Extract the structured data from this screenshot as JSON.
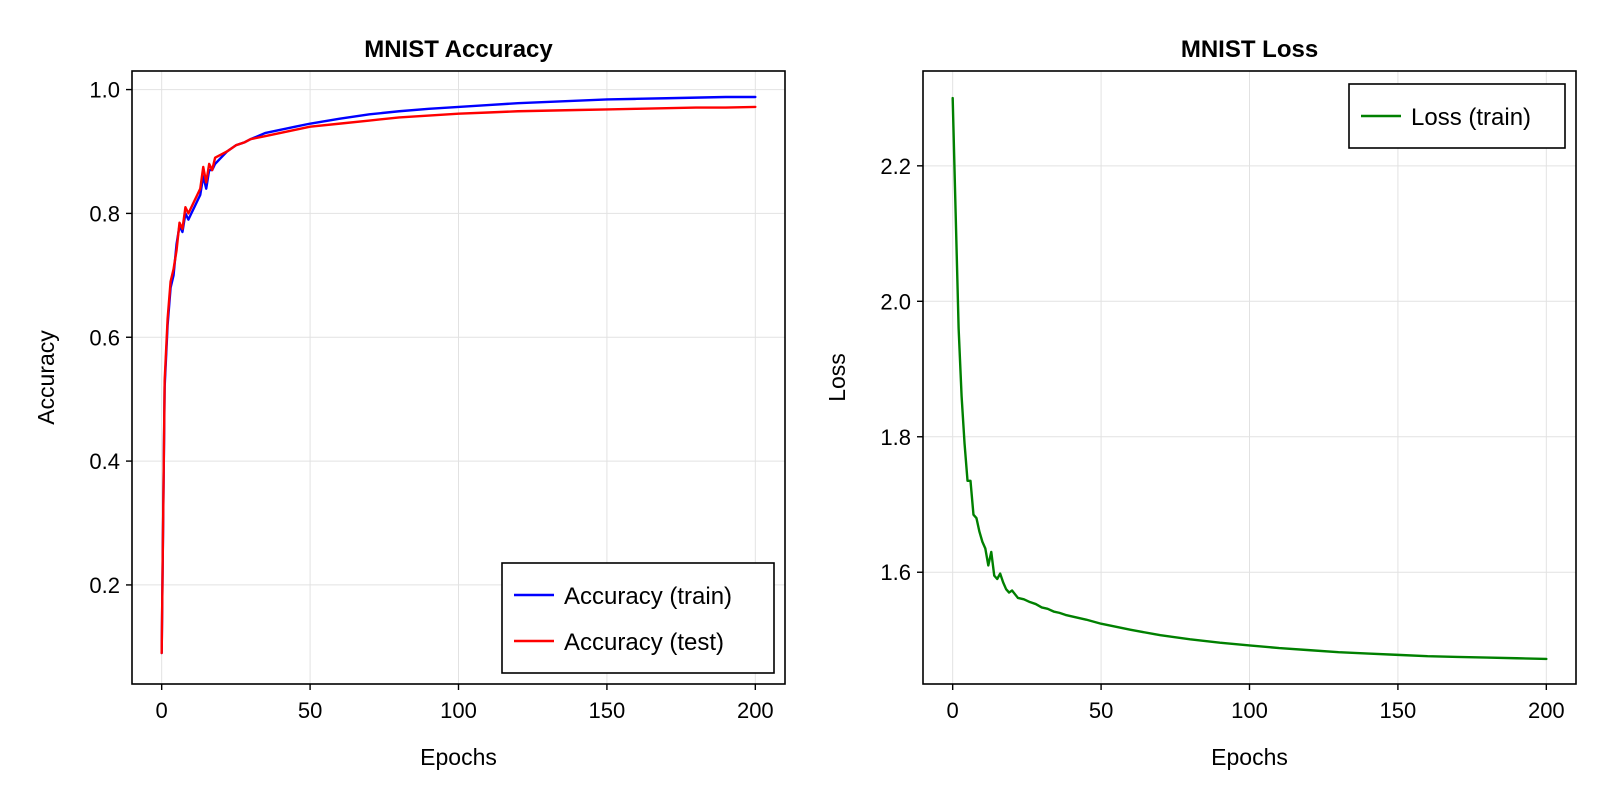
{
  "colors": {
    "train_acc": "#0000ff",
    "test_acc": "#ff0000",
    "loss": "#008000"
  },
  "chart_data": [
    {
      "type": "line",
      "title": "MNIST Accuracy",
      "xlabel": "Epochs",
      "ylabel": "Accuracy",
      "xlim": [
        -10,
        210
      ],
      "ylim": [
        0.04,
        1.03
      ],
      "xticks": [
        0,
        50,
        100,
        150,
        200
      ],
      "xtick_labels": [
        "0",
        "50",
        "100",
        "150",
        "200"
      ],
      "yticks": [
        0.2,
        0.4,
        0.6,
        0.8,
        1.0
      ],
      "ytick_labels": [
        "0.2",
        "0.4",
        "0.6",
        "0.8",
        "1.0"
      ],
      "grid": true,
      "legend_position": "bottom-right",
      "series": [
        {
          "name": "Accuracy (train)",
          "color": "#0000ff",
          "x": [
            0,
            1,
            2,
            3,
            4,
            5,
            6,
            7,
            8,
            9,
            10,
            11,
            12,
            13,
            14,
            15,
            16,
            17,
            18,
            20,
            22,
            25,
            28,
            30,
            35,
            40,
            45,
            50,
            60,
            70,
            80,
            90,
            100,
            110,
            120,
            130,
            140,
            150,
            160,
            170,
            180,
            190,
            200
          ],
          "y": [
            0.09,
            0.52,
            0.62,
            0.68,
            0.7,
            0.75,
            0.78,
            0.77,
            0.8,
            0.79,
            0.8,
            0.81,
            0.82,
            0.83,
            0.86,
            0.84,
            0.87,
            0.87,
            0.88,
            0.89,
            0.9,
            0.91,
            0.915,
            0.92,
            0.93,
            0.935,
            0.94,
            0.945,
            0.953,
            0.96,
            0.965,
            0.969,
            0.972,
            0.975,
            0.978,
            0.98,
            0.982,
            0.984,
            0.985,
            0.986,
            0.987,
            0.988,
            0.988
          ]
        },
        {
          "name": "Accuracy (test)",
          "color": "#ff0000",
          "x": [
            0,
            1,
            2,
            3,
            4,
            5,
            6,
            7,
            8,
            9,
            10,
            11,
            12,
            13,
            14,
            15,
            16,
            17,
            18,
            20,
            22,
            25,
            28,
            30,
            35,
            40,
            45,
            50,
            60,
            70,
            80,
            90,
            100,
            110,
            120,
            130,
            140,
            150,
            160,
            170,
            180,
            190,
            200
          ],
          "y": [
            0.09,
            0.53,
            0.63,
            0.69,
            0.71,
            0.74,
            0.785,
            0.775,
            0.81,
            0.8,
            0.81,
            0.82,
            0.83,
            0.84,
            0.875,
            0.85,
            0.88,
            0.87,
            0.89,
            0.895,
            0.9,
            0.91,
            0.915,
            0.92,
            0.925,
            0.93,
            0.935,
            0.94,
            0.945,
            0.95,
            0.955,
            0.958,
            0.961,
            0.963,
            0.965,
            0.966,
            0.967,
            0.968,
            0.969,
            0.97,
            0.971,
            0.971,
            0.972
          ]
        }
      ]
    },
    {
      "type": "line",
      "title": "MNIST Loss",
      "xlabel": "Epochs",
      "ylabel": "Loss",
      "xlim": [
        -10,
        210
      ],
      "ylim": [
        1.435,
        2.34
      ],
      "xticks": [
        0,
        50,
        100,
        150,
        200
      ],
      "xtick_labels": [
        "0",
        "50",
        "100",
        "150",
        "200"
      ],
      "yticks": [
        1.6,
        1.8,
        2.0,
        2.2
      ],
      "ytick_labels": [
        "1.6",
        "1.8",
        "2.0",
        "2.2"
      ],
      "grid": true,
      "legend_position": "top-right",
      "series": [
        {
          "name": "Loss (train)",
          "color": "#008000",
          "x": [
            0,
            1,
            2,
            3,
            4,
            5,
            6,
            7,
            8,
            9,
            10,
            11,
            12,
            13,
            14,
            15,
            16,
            17,
            18,
            19,
            20,
            22,
            24,
            26,
            28,
            30,
            32,
            34,
            36,
            38,
            40,
            45,
            50,
            60,
            70,
            80,
            90,
            100,
            110,
            120,
            130,
            140,
            150,
            160,
            170,
            180,
            190,
            200
          ],
          "y": [
            2.3,
            2.13,
            1.96,
            1.86,
            1.79,
            1.735,
            1.735,
            1.685,
            1.68,
            1.66,
            1.645,
            1.635,
            1.61,
            1.63,
            1.595,
            1.59,
            1.598,
            1.585,
            1.575,
            1.57,
            1.573,
            1.562,
            1.56,
            1.556,
            1.553,
            1.548,
            1.546,
            1.542,
            1.54,
            1.537,
            1.535,
            1.53,
            1.524,
            1.515,
            1.507,
            1.501,
            1.496,
            1.492,
            1.488,
            1.485,
            1.482,
            1.48,
            1.478,
            1.476,
            1.475,
            1.474,
            1.473,
            1.472
          ]
        }
      ]
    }
  ]
}
